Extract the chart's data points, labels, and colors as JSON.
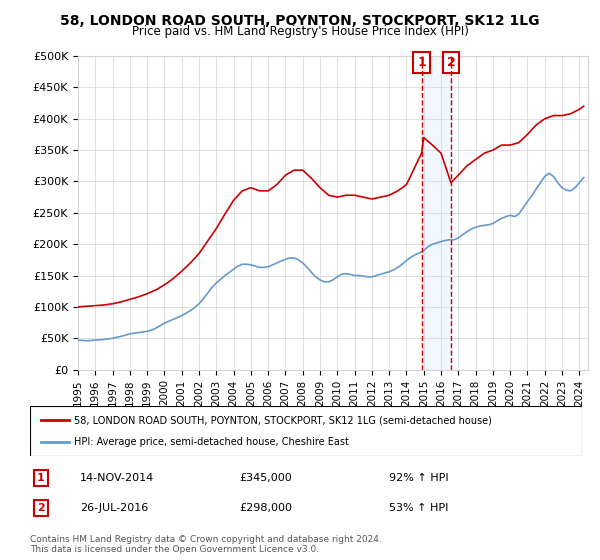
{
  "title": "58, LONDON ROAD SOUTH, POYNTON, STOCKPORT, SK12 1LG",
  "subtitle": "Price paid vs. HM Land Registry's House Price Index (HPI)",
  "ylim": [
    0,
    500000
  ],
  "yticks": [
    0,
    50000,
    100000,
    150000,
    200000,
    250000,
    300000,
    350000,
    400000,
    450000,
    500000
  ],
  "ytick_labels": [
    "£0",
    "£50K",
    "£100K",
    "£150K",
    "£200K",
    "£250K",
    "£300K",
    "£350K",
    "£400K",
    "£450K",
    "£500K"
  ],
  "xlim_start": 1995.0,
  "xlim_end": 2024.5,
  "red_line_label": "58, LONDON ROAD SOUTH, POYNTON, STOCKPORT, SK12 1LG (semi-detached house)",
  "blue_line_label": "HPI: Average price, semi-detached house, Cheshire East",
  "sale1_date": "14-NOV-2014",
  "sale1_price": 345000,
  "sale1_pct": "92%",
  "sale1_x": 2014.87,
  "sale2_date": "26-JUL-2016",
  "sale2_price": 298000,
  "sale2_pct": "53%",
  "sale2_x": 2016.57,
  "red_color": "#cc0000",
  "blue_color": "#6699cc",
  "dashed_color": "#cc0000",
  "box_color": "#cc0000",
  "shade_color": "#cce0ff",
  "copyright_text": "Contains HM Land Registry data © Crown copyright and database right 2024.\nThis data is licensed under the Open Government Licence v3.0.",
  "hpi_data": {
    "years": [
      1995.0,
      1995.25,
      1995.5,
      1995.75,
      1996.0,
      1996.25,
      1996.5,
      1996.75,
      1997.0,
      1997.25,
      1997.5,
      1997.75,
      1998.0,
      1998.25,
      1998.5,
      1998.75,
      1999.0,
      1999.25,
      1999.5,
      1999.75,
      2000.0,
      2000.25,
      2000.5,
      2000.75,
      2001.0,
      2001.25,
      2001.5,
      2001.75,
      2002.0,
      2002.25,
      2002.5,
      2002.75,
      2003.0,
      2003.25,
      2003.5,
      2003.75,
      2004.0,
      2004.25,
      2004.5,
      2004.75,
      2005.0,
      2005.25,
      2005.5,
      2005.75,
      2006.0,
      2006.25,
      2006.5,
      2006.75,
      2007.0,
      2007.25,
      2007.5,
      2007.75,
      2008.0,
      2008.25,
      2008.5,
      2008.75,
      2009.0,
      2009.25,
      2009.5,
      2009.75,
      2010.0,
      2010.25,
      2010.5,
      2010.75,
      2011.0,
      2011.25,
      2011.5,
      2011.75,
      2012.0,
      2012.25,
      2012.5,
      2012.75,
      2013.0,
      2013.25,
      2013.5,
      2013.75,
      2014.0,
      2014.25,
      2014.5,
      2014.75,
      2015.0,
      2015.25,
      2015.5,
      2015.75,
      2016.0,
      2016.25,
      2016.5,
      2016.75,
      2017.0,
      2017.25,
      2017.5,
      2017.75,
      2018.0,
      2018.25,
      2018.5,
      2018.75,
      2019.0,
      2019.25,
      2019.5,
      2019.75,
      2020.0,
      2020.25,
      2020.5,
      2020.75,
      2021.0,
      2021.25,
      2021.5,
      2021.75,
      2022.0,
      2022.25,
      2022.5,
      2022.75,
      2023.0,
      2023.25,
      2023.5,
      2023.75,
      2024.0,
      2024.25
    ],
    "values": [
      47000,
      46500,
      46000,
      46500,
      47000,
      47500,
      48000,
      49000,
      50000,
      51500,
      53000,
      55000,
      57000,
      58000,
      59000,
      60000,
      61000,
      63000,
      66000,
      70000,
      74000,
      77000,
      80000,
      83000,
      86000,
      90000,
      94000,
      99000,
      105000,
      113000,
      122000,
      131000,
      138000,
      144000,
      150000,
      155000,
      160000,
      165000,
      168000,
      168000,
      167000,
      165000,
      163000,
      163000,
      164000,
      167000,
      170000,
      173000,
      176000,
      178000,
      178000,
      175000,
      170000,
      163000,
      155000,
      148000,
      143000,
      140000,
      140000,
      143000,
      148000,
      152000,
      153000,
      152000,
      150000,
      150000,
      149000,
      148000,
      148000,
      150000,
      152000,
      154000,
      156000,
      159000,
      163000,
      168000,
      174000,
      179000,
      183000,
      186000,
      190000,
      196000,
      200000,
      202000,
      204000,
      206000,
      207000,
      207000,
      210000,
      215000,
      220000,
      224000,
      227000,
      229000,
      230000,
      231000,
      233000,
      237000,
      241000,
      244000,
      246000,
      244000,
      248000,
      258000,
      268000,
      277000,
      288000,
      298000,
      308000,
      313000,
      308000,
      298000,
      290000,
      286000,
      285000,
      290000,
      298000,
      306000
    ]
  },
  "red_data": {
    "years": [
      1995.0,
      1995.5,
      1996.0,
      1996.5,
      1997.0,
      1997.5,
      1998.0,
      1998.5,
      1999.0,
      1999.5,
      2000.0,
      2000.5,
      2001.0,
      2001.5,
      2002.0,
      2002.5,
      2003.0,
      2003.5,
      2004.0,
      2004.5,
      2005.0,
      2005.5,
      2006.0,
      2006.5,
      2007.0,
      2007.5,
      2008.0,
      2008.5,
      2009.0,
      2009.5,
      2010.0,
      2010.5,
      2011.0,
      2011.5,
      2012.0,
      2012.5,
      2013.0,
      2013.5,
      2014.0,
      2014.87,
      2015.0,
      2015.5,
      2016.0,
      2016.57,
      2017.0,
      2017.5,
      2018.0,
      2018.5,
      2019.0,
      2019.5,
      2020.0,
      2020.5,
      2021.0,
      2021.5,
      2022.0,
      2022.5,
      2023.0,
      2023.5,
      2024.0,
      2024.25
    ],
    "values": [
      100000,
      101000,
      102000,
      103000,
      105000,
      108000,
      112000,
      116000,
      121000,
      127000,
      135000,
      145000,
      157000,
      170000,
      185000,
      205000,
      225000,
      248000,
      270000,
      285000,
      290000,
      285000,
      285000,
      295000,
      310000,
      318000,
      318000,
      305000,
      290000,
      278000,
      275000,
      278000,
      278000,
      275000,
      272000,
      275000,
      278000,
      285000,
      295000,
      345000,
      370000,
      358000,
      345000,
      298000,
      310000,
      325000,
      335000,
      345000,
      350000,
      358000,
      358000,
      362000,
      375000,
      390000,
      400000,
      405000,
      405000,
      408000,
      415000,
      420000
    ]
  }
}
